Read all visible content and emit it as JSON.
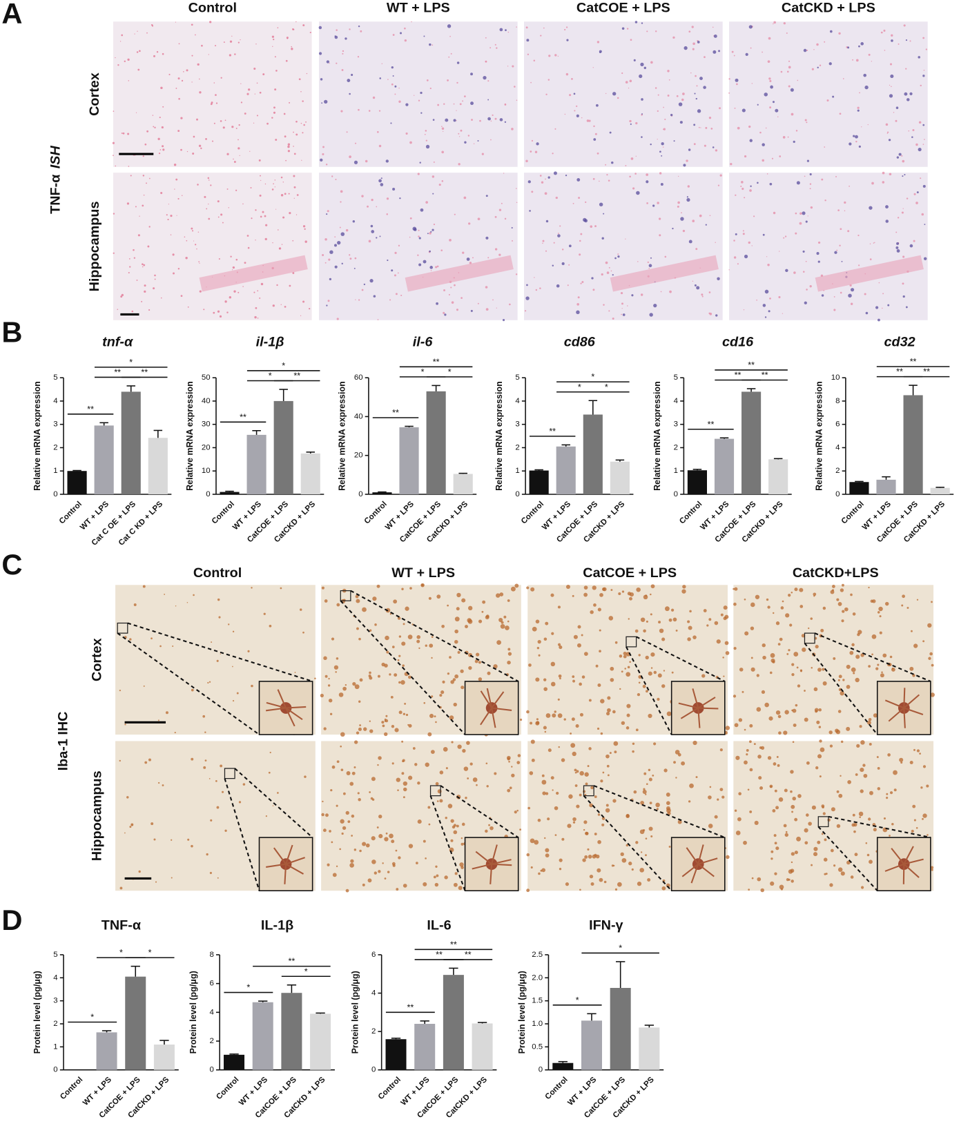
{
  "panel_labels": [
    "A",
    "B",
    "C",
    "D"
  ],
  "panel_a": {
    "side_label": {
      "text": "TNF-α",
      "method": "ISH"
    },
    "columns": [
      "Control",
      "WT + LPS",
      "CatCOE + LPS",
      "CatCKD + LPS"
    ],
    "rows": [
      "Cortex",
      "Hippocampus"
    ]
  },
  "panel_c": {
    "side_label": "Iba-1 IHC",
    "columns": [
      "Control",
      "WT + LPS",
      "CatCOE + LPS",
      "CatCKD+LPS"
    ],
    "rows": [
      "Cortex",
      "Hippocampus"
    ]
  },
  "chart_data": [
    {
      "type": "bar",
      "title": "tnf-α",
      "title_italic": true,
      "ylabel": "Relative mRNA expression",
      "categories": [
        "Control",
        "WT + LPS",
        "Cat C OE + LPS",
        "Cat C KD + LPS"
      ],
      "values": [
        1.0,
        2.95,
        4.4,
        2.42
      ],
      "errors": [
        0.02,
        0.12,
        0.25,
        0.32
      ],
      "colors": [
        "#111111",
        "#a6a6ae",
        "#777777",
        "#d9d9d9"
      ],
      "ylim": [
        0,
        5
      ],
      "yticks": [
        0,
        1,
        2,
        3,
        4,
        5
      ],
      "significance": [
        {
          "label": "**",
          "between": [
            0,
            1
          ]
        },
        {
          "label": "**",
          "between": [
            1,
            2
          ]
        },
        {
          "label": "**",
          "between": [
            2,
            3
          ]
        },
        {
          "label": "*",
          "between": [
            1,
            3
          ]
        }
      ]
    },
    {
      "type": "bar",
      "title": "il-1β",
      "title_italic": true,
      "ylabel": "Relative mRNA expression",
      "categories": [
        "Control",
        "WT + LPS",
        "CatCOE + LPS",
        "CatCKD + LPS"
      ],
      "values": [
        1,
        25.5,
        40,
        17.5
      ],
      "errors": [
        0.3,
        1.8,
        5,
        0.6
      ],
      "colors": [
        "#111111",
        "#a6a6ae",
        "#777777",
        "#d9d9d9"
      ],
      "ylim": [
        0,
        50
      ],
      "yticks": [
        0,
        10,
        20,
        30,
        40,
        50
      ],
      "significance": [
        {
          "label": "**",
          "between": [
            0,
            1
          ]
        },
        {
          "label": "*",
          "between": [
            1,
            2
          ]
        },
        {
          "label": "**",
          "between": [
            2,
            3
          ]
        },
        {
          "label": "*",
          "between": [
            1,
            3
          ]
        }
      ]
    },
    {
      "type": "bar",
      "title": "il-6",
      "title_italic": true,
      "ylabel": "Relative mRNA expression",
      "categories": [
        "Control",
        "WT + LPS",
        "CatCOE + LPS",
        "CatCKD + LPS"
      ],
      "values": [
        1,
        34.5,
        53,
        10.5
      ],
      "errors": [
        0.2,
        0.5,
        3,
        0.3
      ],
      "colors": [
        "#111111",
        "#a6a6ae",
        "#777777",
        "#d9d9d9"
      ],
      "ylim": [
        0,
        60
      ],
      "yticks": [
        0,
        20,
        40,
        60
      ],
      "significance": [
        {
          "label": "**",
          "between": [
            0,
            1
          ]
        },
        {
          "label": "*",
          "between": [
            1,
            2
          ]
        },
        {
          "label": "*",
          "between": [
            2,
            3
          ]
        },
        {
          "label": "**",
          "between": [
            1,
            3
          ]
        }
      ]
    },
    {
      "type": "bar",
      "title": "cd86",
      "title_italic": true,
      "ylabel": "Relative mRNA expression",
      "categories": [
        "Control",
        "WT + LPS",
        "CatCOE + LPS",
        "CatCKD + LPS"
      ],
      "values": [
        1.02,
        2.05,
        3.42,
        1.4
      ],
      "errors": [
        0.03,
        0.07,
        0.6,
        0.07
      ],
      "colors": [
        "#111111",
        "#a6a6ae",
        "#777777",
        "#d9d9d9"
      ],
      "ylim": [
        0,
        5
      ],
      "yticks": [
        0,
        1,
        2,
        3,
        4,
        5
      ],
      "significance": [
        {
          "label": "**",
          "between": [
            0,
            1
          ]
        },
        {
          "label": "*",
          "between": [
            1,
            2
          ]
        },
        {
          "label": "*",
          "between": [
            2,
            3
          ]
        },
        {
          "label": "*",
          "between": [
            1,
            3
          ]
        }
      ]
    },
    {
      "type": "bar",
      "title": "cd16",
      "title_italic": true,
      "ylabel": "Relative mRNA expression",
      "categories": [
        "Control",
        "WT + LPS",
        "CatCOE + LPS",
        "CatCKD + LPS"
      ],
      "values": [
        1.03,
        2.38,
        4.4,
        1.5
      ],
      "errors": [
        0.04,
        0.04,
        0.13,
        0.03
      ],
      "colors": [
        "#111111",
        "#a6a6ae",
        "#777777",
        "#d9d9d9"
      ],
      "ylim": [
        0,
        5
      ],
      "yticks": [
        0,
        1,
        2,
        3,
        4,
        5
      ],
      "significance": [
        {
          "label": "**",
          "between": [
            0,
            1
          ]
        },
        {
          "label": "**",
          "between": [
            1,
            2
          ]
        },
        {
          "label": "**",
          "between": [
            2,
            3
          ]
        },
        {
          "label": "**",
          "between": [
            1,
            3
          ]
        }
      ]
    },
    {
      "type": "bar",
      "title": "cd32",
      "title_italic": true,
      "ylabel": "Relative mRNA expression",
      "categories": [
        "Control",
        "WT + LPS",
        "CatCOE + LPS",
        "CatCKD + LPS"
      ],
      "values": [
        1.05,
        1.25,
        8.5,
        0.55
      ],
      "errors": [
        0.05,
        0.25,
        0.85,
        0.05
      ],
      "colors": [
        "#111111",
        "#a6a6ae",
        "#777777",
        "#d9d9d9"
      ],
      "ylim": [
        0,
        10
      ],
      "yticks": [
        0,
        2,
        4,
        6,
        8,
        10
      ],
      "significance": [
        {
          "label": "**",
          "between": [
            1,
            2
          ]
        },
        {
          "label": "**",
          "between": [
            2,
            3
          ]
        },
        {
          "label": "**",
          "between": [
            1,
            3
          ]
        }
      ]
    },
    {
      "type": "bar",
      "title": "TNF-α",
      "title_italic": false,
      "ylabel": "Protein level (pg/μg)",
      "categories": [
        "Control",
        "WT + LPS",
        "CatCOE + LPS",
        "CatCKD + LPS"
      ],
      "values": [
        0,
        1.63,
        4.05,
        1.1
      ],
      "errors": [
        null,
        0.07,
        0.45,
        0.18
      ],
      "colors": [
        "#111111",
        "#a6a6ae",
        "#777777",
        "#d9d9d9"
      ],
      "ylim": [
        0,
        5
      ],
      "yticks": [
        0,
        1,
        2,
        3,
        4,
        5
      ],
      "significance": [
        {
          "label": "*",
          "between": [
            0,
            1
          ]
        },
        {
          "label": "*",
          "between": [
            1,
            2
          ]
        },
        {
          "label": "*",
          "between": [
            2,
            3
          ]
        }
      ]
    },
    {
      "type": "bar",
      "title": "IL-1β",
      "title_italic": false,
      "ylabel": "Protein level (pg/μg)",
      "categories": [
        "Control",
        "WT + LPS",
        "CatCOE + LPS",
        "CatCKD + LPS"
      ],
      "values": [
        1.05,
        4.7,
        5.35,
        3.9
      ],
      "errors": [
        0.05,
        0.08,
        0.55,
        0.05
      ],
      "colors": [
        "#111111",
        "#a6a6ae",
        "#777777",
        "#d9d9d9"
      ],
      "ylim": [
        0,
        8
      ],
      "yticks": [
        0,
        2,
        4,
        6,
        8
      ],
      "significance": [
        {
          "label": "*",
          "between": [
            0,
            1
          ]
        },
        {
          "label": "*",
          "between": [
            2,
            3
          ]
        },
        {
          "label": "**",
          "between": [
            1,
            3
          ]
        }
      ]
    },
    {
      "type": "bar",
      "title": "IL-6",
      "title_italic": false,
      "ylabel": "Protein level (pg/μg)",
      "categories": [
        "Control",
        "WT + LPS",
        "CatCOE + LPS",
        "CatCKD + LPS"
      ],
      "values": [
        1.6,
        2.4,
        4.95,
        2.42
      ],
      "errors": [
        0.05,
        0.15,
        0.35,
        0.05
      ],
      "colors": [
        "#111111",
        "#a6a6ae",
        "#777777",
        "#d9d9d9"
      ],
      "ylim": [
        0,
        6
      ],
      "yticks": [
        0,
        2,
        4,
        6
      ],
      "significance": [
        {
          "label": "**",
          "between": [
            0,
            1
          ]
        },
        {
          "label": "**",
          "between": [
            1,
            2
          ]
        },
        {
          "label": "**",
          "between": [
            2,
            3
          ]
        },
        {
          "label": "**",
          "between": [
            1,
            3
          ]
        }
      ]
    },
    {
      "type": "bar",
      "title": "IFN-γ",
      "title_italic": false,
      "ylabel": "Protein level (pg/μg)",
      "categories": [
        "Control",
        "WT + LPS",
        "CatCOE + LPS",
        "CatCKD + LPS"
      ],
      "values": [
        0.15,
        1.07,
        1.78,
        0.92
      ],
      "errors": [
        0.03,
        0.15,
        0.57,
        0.05
      ],
      "colors": [
        "#111111",
        "#a6a6ae",
        "#777777",
        "#d9d9d9"
      ],
      "ylim": [
        0,
        2.5
      ],
      "yticks": [
        0,
        0.5,
        {
          "value": 1,
          "label": "1.0"
        },
        1.5,
        {
          "value": 2,
          "label": "2.0"
        },
        2.5
      ],
      "significance": [
        {
          "label": "*",
          "between": [
            0,
            1
          ]
        },
        {
          "label": "*",
          "between": [
            1,
            3
          ]
        }
      ]
    }
  ]
}
